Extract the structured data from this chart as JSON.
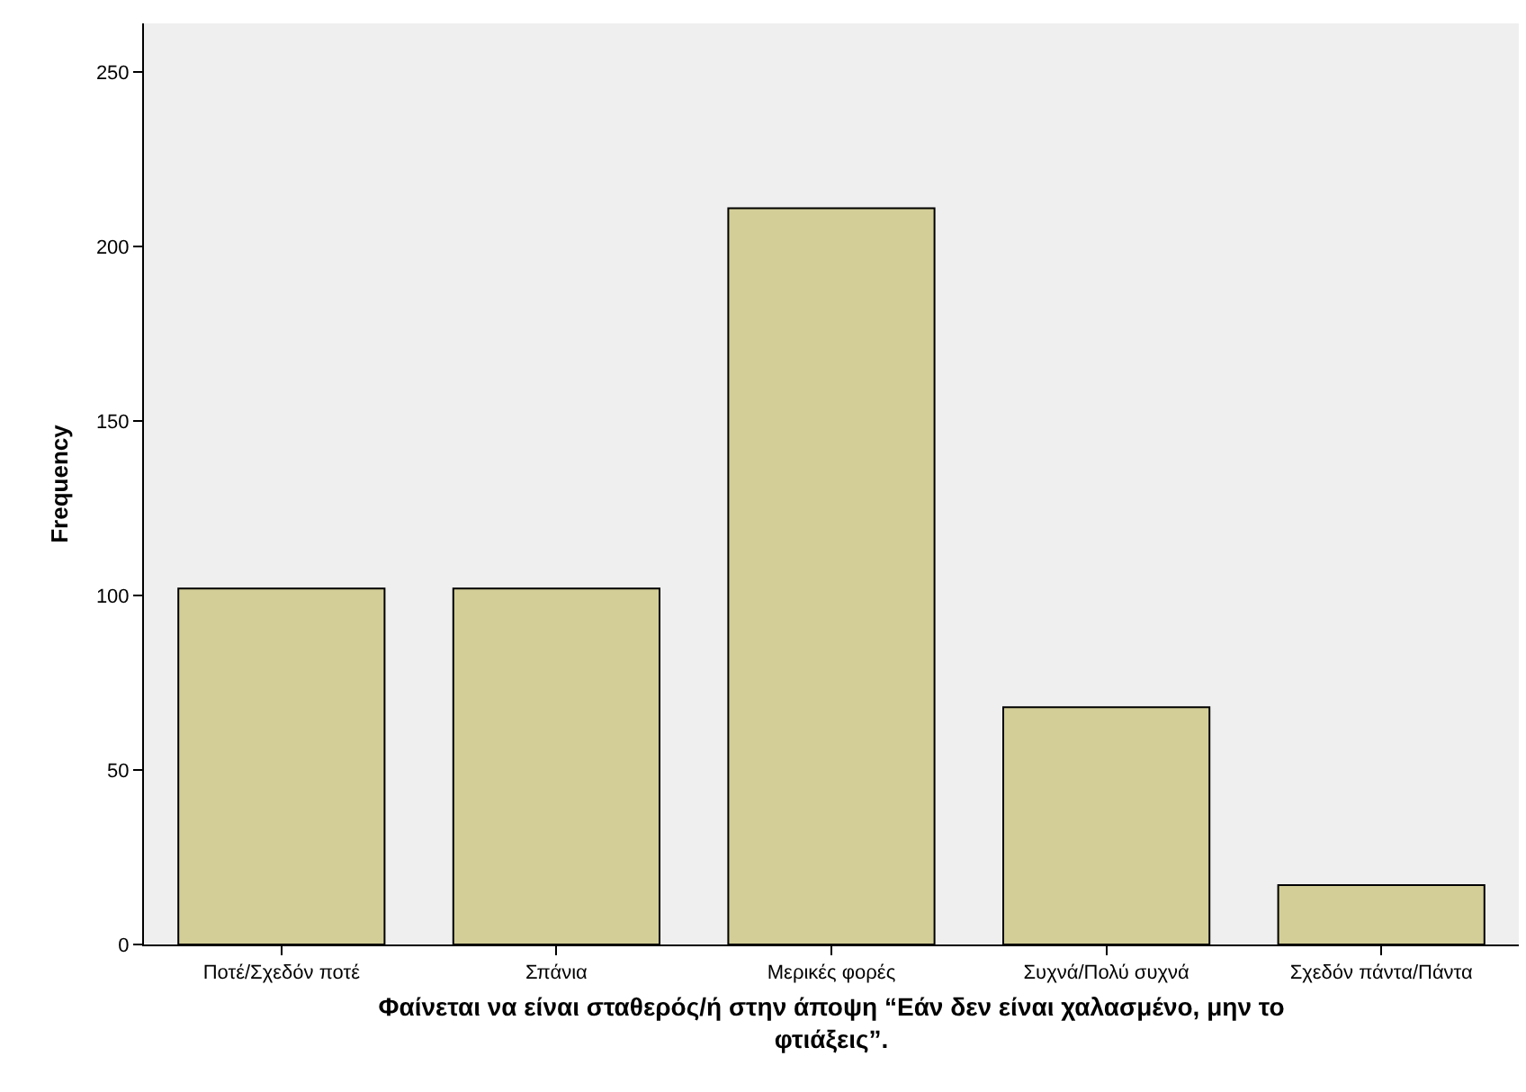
{
  "chart_data": {
    "type": "bar",
    "xlabel": "Φαίνεται να είναι σταθερός/ή στην άποψη “Εάν δεν είναι χαλασμένο, μην το φτιάξεις”.",
    "ylabel": "Frequency",
    "categories": [
      "Ποτέ/Σχεδόν ποτέ",
      "Σπάνια",
      "Μερικές φορές",
      "Συχνά/Πολύ συχνά",
      "Σχεδόν πάντα/Πάντα"
    ],
    "values": [
      102,
      102,
      211,
      68,
      17
    ],
    "color": "#d3ce97",
    "ylim": [
      0,
      264
    ],
    "yticks": [
      0,
      50,
      100,
      150,
      200,
      250
    ],
    "grid": false
  }
}
